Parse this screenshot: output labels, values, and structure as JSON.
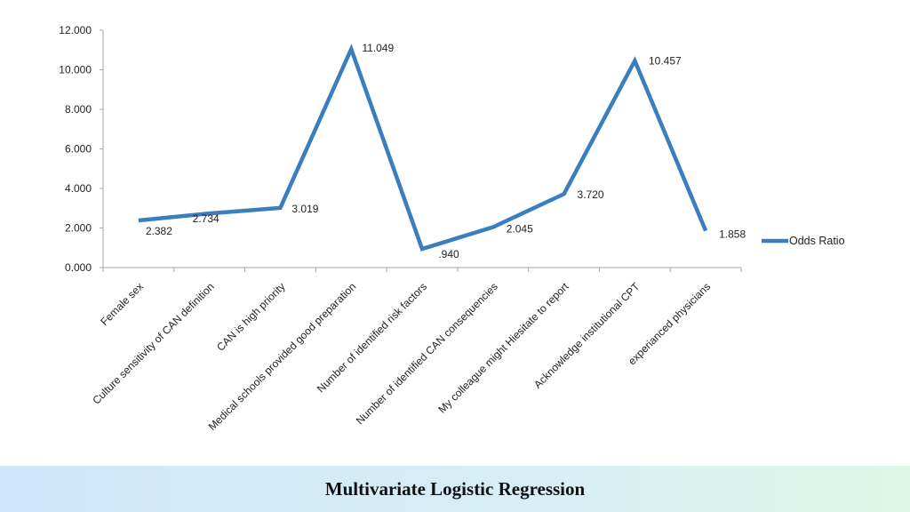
{
  "chart_data": {
    "type": "line",
    "categories": [
      "Female sex",
      "Culture sensitivity of CAN definition",
      "CAN is high priority",
      "Medical schools provided good preparation",
      "Number of identified risk factors",
      "Number of identified CAN consequencies",
      "My colleague might Hiesitate to report",
      "Acknowledge institutional CPT",
      "experianced physicians"
    ],
    "series": [
      {
        "name": "Odds Ratio",
        "values": [
          2.382,
          2.734,
          3.019,
          11.049,
          0.94,
          2.045,
          3.72,
          10.457,
          1.858
        ],
        "data_labels": [
          "2.382",
          "2.734",
          "3.019",
          "11.049",
          ".940",
          "2.045",
          "3.720",
          "10.457",
          "1.858"
        ],
        "color": "#3a7ebf"
      }
    ],
    "ylim": [
      0,
      12
    ],
    "yticks": [
      "0.000",
      "2.000",
      "4.000",
      "6.000",
      "8.000",
      "10.000",
      "12.000"
    ],
    "grid": false,
    "legend": "right"
  },
  "footer": {
    "title": "Multivariate Logistic Regression"
  }
}
